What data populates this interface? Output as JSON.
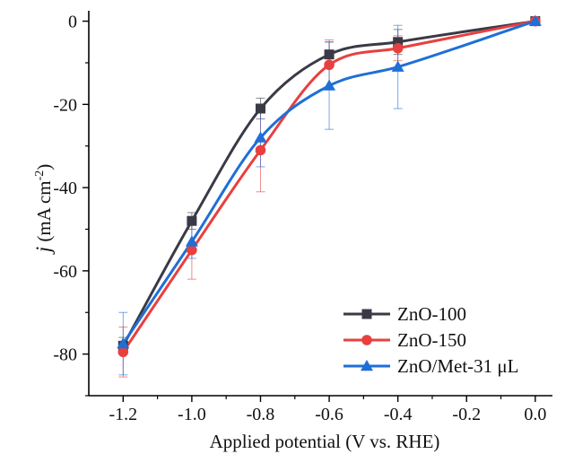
{
  "chart_data": {
    "type": "line",
    "xlabel": "Applied potential (V vs. RHE)",
    "ylabel": {
      "italic": "j",
      "main": " (mA cm",
      "sup": "-2",
      "close": ")"
    },
    "xlim": [
      -1.3,
      0.05
    ],
    "ylim": [
      -90,
      2.5
    ],
    "xticks": [
      -1.2,
      -1.0,
      -0.8,
      -0.6,
      -0.4,
      -0.2,
      0.0
    ],
    "xtick_labels": [
      "-1.2",
      "-1.0",
      "-0.8",
      "-0.6",
      "-0.4",
      "-0.2",
      "0.0"
    ],
    "yticks": [
      0,
      -20,
      -40,
      -60,
      -80
    ],
    "ytick_labels": [
      "0",
      "-20",
      "-40",
      "-60",
      "-80"
    ],
    "grid": false,
    "legend_position": "bottom-right",
    "series": [
      {
        "name": "ZnO-100",
        "color": "#3a3a46",
        "marker": "square",
        "x": [
          -1.2,
          -1.0,
          -0.8,
          -0.6,
          -0.4,
          0.0
        ],
        "y": [
          -78,
          -48,
          -21,
          -8,
          -5,
          0
        ],
        "error": [
          2,
          2,
          2.5,
          3,
          3,
          0.5
        ]
      },
      {
        "name": "ZnO-150",
        "color": "#e8403f",
        "marker": "circle",
        "x": [
          -1.2,
          -1.0,
          -0.8,
          -0.6,
          -0.4,
          0.0
        ],
        "y": [
          -79.5,
          -55,
          -31,
          -10.5,
          -6.5,
          0
        ],
        "error": [
          6,
          7,
          10,
          6,
          3,
          0.5
        ]
      },
      {
        "name": "ZnO/Met-31 μL",
        "color": "#1f6fd6",
        "marker": "triangle",
        "x": [
          -1.2,
          -1.0,
          -0.8,
          -0.6,
          -0.4,
          0.0
        ],
        "y": [
          -77.5,
          -53,
          -28,
          -15.5,
          -11,
          0
        ],
        "error": [
          7.5,
          4,
          7,
          10.5,
          10,
          0.5
        ]
      }
    ]
  }
}
